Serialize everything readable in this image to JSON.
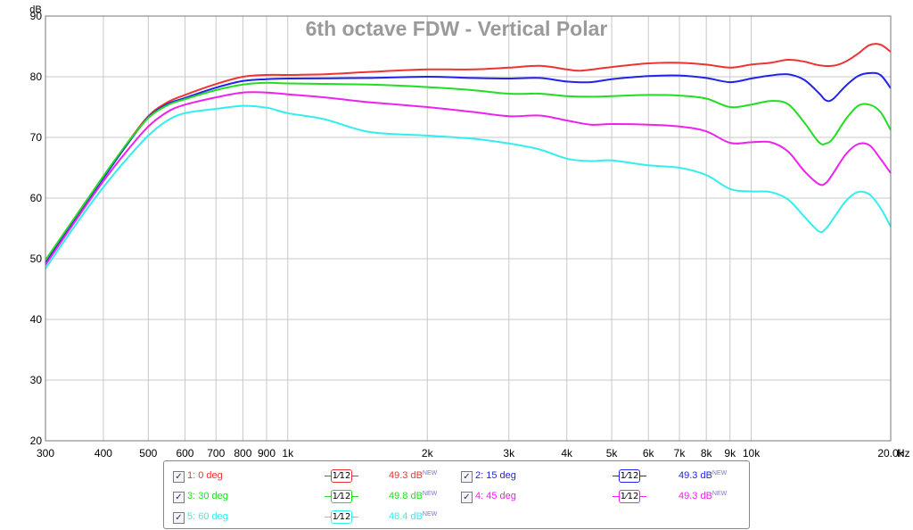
{
  "chart_data": {
    "type": "line",
    "title": "6th octave FDW - Vertical Polar",
    "ylabel": "dB",
    "xlabel": "Hz",
    "xscale": "log",
    "xlim": [
      300,
      20000
    ],
    "ylim": [
      20,
      90
    ],
    "y_ticks": [
      20,
      30,
      40,
      50,
      60,
      70,
      80,
      90
    ],
    "x_ticks": [
      {
        "v": 300,
        "label": "300"
      },
      {
        "v": 400,
        "label": "400"
      },
      {
        "v": 500,
        "label": "500"
      },
      {
        "v": 600,
        "label": "600"
      },
      {
        "v": 700,
        "label": "700"
      },
      {
        "v": 800,
        "label": "800"
      },
      {
        "v": 900,
        "label": "900"
      },
      {
        "v": 1000,
        "label": "1k"
      },
      {
        "v": 2000,
        "label": "2k"
      },
      {
        "v": 3000,
        "label": "3k"
      },
      {
        "v": 4000,
        "label": "4k"
      },
      {
        "v": 5000,
        "label": "5k"
      },
      {
        "v": 6000,
        "label": "6k"
      },
      {
        "v": 7000,
        "label": "7k"
      },
      {
        "v": 8000,
        "label": "8k"
      },
      {
        "v": 9000,
        "label": "9k"
      },
      {
        "v": 10000,
        "label": "10k"
      },
      {
        "v": 20000,
        "label": "20.0k"
      }
    ],
    "grid": true,
    "legend_position": "bottom",
    "series": [
      {
        "name": "1: 0 deg",
        "color": "#ee3333",
        "smoothing": "1/12",
        "value_label": "49.3 dB",
        "points": [
          [
            300,
            49.5
          ],
          [
            350,
            57
          ],
          [
            400,
            63.5
          ],
          [
            450,
            69
          ],
          [
            500,
            73.5
          ],
          [
            550,
            75.8
          ],
          [
            600,
            77
          ],
          [
            700,
            78.8
          ],
          [
            800,
            80
          ],
          [
            900,
            80.3
          ],
          [
            1000,
            80.3
          ],
          [
            1200,
            80.4
          ],
          [
            1500,
            80.8
          ],
          [
            2000,
            81.2
          ],
          [
            2500,
            81.2
          ],
          [
            3000,
            81.5
          ],
          [
            3500,
            81.8
          ],
          [
            4000,
            81.2
          ],
          [
            4300,
            81
          ],
          [
            5000,
            81.6
          ],
          [
            6000,
            82.2
          ],
          [
            7000,
            82.3
          ],
          [
            8000,
            82
          ],
          [
            9000,
            81.5
          ],
          [
            10000,
            82
          ],
          [
            11000,
            82.3
          ],
          [
            12000,
            82.8
          ],
          [
            13000,
            82.5
          ],
          [
            14000,
            81.9
          ],
          [
            15000,
            81.8
          ],
          [
            16000,
            82.5
          ],
          [
            17000,
            83.8
          ],
          [
            18000,
            85.2
          ],
          [
            19000,
            85.3
          ],
          [
            20000,
            84.1
          ]
        ]
      },
      {
        "name": "2: 15 deg",
        "color": "#2222ee",
        "smoothing": "1/12",
        "value_label": "49.3 dB",
        "points": [
          [
            300,
            49.2
          ],
          [
            350,
            57
          ],
          [
            400,
            63.3
          ],
          [
            450,
            68.8
          ],
          [
            500,
            73.3
          ],
          [
            550,
            75.5
          ],
          [
            600,
            76.5
          ],
          [
            700,
            78.2
          ],
          [
            800,
            79.3
          ],
          [
            900,
            79.6
          ],
          [
            1000,
            79.7
          ],
          [
            1500,
            79.8
          ],
          [
            2000,
            80
          ],
          [
            2500,
            79.8
          ],
          [
            3000,
            79.7
          ],
          [
            3500,
            79.8
          ],
          [
            4000,
            79.2
          ],
          [
            4500,
            79.1
          ],
          [
            5000,
            79.6
          ],
          [
            6000,
            80.1
          ],
          [
            7000,
            80.2
          ],
          [
            8000,
            79.8
          ],
          [
            9000,
            79.1
          ],
          [
            10000,
            79.7
          ],
          [
            11000,
            80.2
          ],
          [
            12000,
            80.4
          ],
          [
            13000,
            79.5
          ],
          [
            14000,
            77.3
          ],
          [
            14500,
            76.1
          ],
          [
            15000,
            76.3
          ],
          [
            16000,
            78.5
          ],
          [
            17000,
            80.1
          ],
          [
            18000,
            80.6
          ],
          [
            19000,
            80.3
          ],
          [
            20000,
            78.1
          ]
        ]
      },
      {
        "name": "3: 30  deg",
        "color": "#22dd22",
        "smoothing": "1/12",
        "value_label": "49.8 dB",
        "points": [
          [
            300,
            49.8
          ],
          [
            350,
            57.2
          ],
          [
            400,
            63.6
          ],
          [
            450,
            69
          ],
          [
            500,
            73.2
          ],
          [
            550,
            75.3
          ],
          [
            600,
            76.3
          ],
          [
            700,
            77.8
          ],
          [
            800,
            78.7
          ],
          [
            900,
            79
          ],
          [
            1000,
            78.9
          ],
          [
            1500,
            78.7
          ],
          [
            2000,
            78.3
          ],
          [
            2500,
            77.8
          ],
          [
            3000,
            77.2
          ],
          [
            3500,
            77.2
          ],
          [
            4000,
            76.8
          ],
          [
            4500,
            76.7
          ],
          [
            5000,
            76.8
          ],
          [
            6000,
            77
          ],
          [
            7000,
            76.9
          ],
          [
            8000,
            76.4
          ],
          [
            9000,
            75
          ],
          [
            10000,
            75.4
          ],
          [
            11000,
            76
          ],
          [
            12000,
            75.5
          ],
          [
            13000,
            72.5
          ],
          [
            14000,
            69.2
          ],
          [
            14500,
            69
          ],
          [
            15000,
            69.8
          ],
          [
            16000,
            73
          ],
          [
            17000,
            75.2
          ],
          [
            18000,
            75.4
          ],
          [
            19000,
            74.2
          ],
          [
            20000,
            71.2
          ]
        ]
      },
      {
        "name": "4: 45 deg",
        "color": "#ee22ee",
        "smoothing": "1/12",
        "value_label": "49.3 dB",
        "points": [
          [
            300,
            49
          ],
          [
            350,
            56.5
          ],
          [
            400,
            62.8
          ],
          [
            450,
            67.8
          ],
          [
            500,
            71.8
          ],
          [
            550,
            74.2
          ],
          [
            600,
            75.4
          ],
          [
            700,
            76.6
          ],
          [
            800,
            77.4
          ],
          [
            900,
            77.4
          ],
          [
            1000,
            77.1
          ],
          [
            1200,
            76.6
          ],
          [
            1500,
            75.8
          ],
          [
            2000,
            75
          ],
          [
            2500,
            74.2
          ],
          [
            3000,
            73.5
          ],
          [
            3500,
            73.6
          ],
          [
            4000,
            72.8
          ],
          [
            4500,
            72.1
          ],
          [
            5000,
            72.2
          ],
          [
            6000,
            72.1
          ],
          [
            7000,
            71.8
          ],
          [
            8000,
            71
          ],
          [
            9000,
            69.1
          ],
          [
            10000,
            69.2
          ],
          [
            11000,
            69.2
          ],
          [
            12000,
            67.7
          ],
          [
            13000,
            64.5
          ],
          [
            14000,
            62.3
          ],
          [
            14500,
            62.5
          ],
          [
            15000,
            64
          ],
          [
            16000,
            67.2
          ],
          [
            17000,
            68.9
          ],
          [
            18000,
            68.7
          ],
          [
            19000,
            66.5
          ],
          [
            20000,
            64.1
          ]
        ]
      },
      {
        "name": "5: 60 deg",
        "color": "#33eeee",
        "smoothing": "1/12",
        "value_label": "48.4 dB",
        "points": [
          [
            300,
            48.4
          ],
          [
            350,
            55.8
          ],
          [
            400,
            61.8
          ],
          [
            450,
            66.5
          ],
          [
            500,
            70.3
          ],
          [
            550,
            72.8
          ],
          [
            600,
            74
          ],
          [
            700,
            74.7
          ],
          [
            800,
            75.2
          ],
          [
            900,
            74.9
          ],
          [
            1000,
            74
          ],
          [
            1200,
            73
          ],
          [
            1500,
            70.9
          ],
          [
            2000,
            70.3
          ],
          [
            2500,
            69.8
          ],
          [
            3000,
            69
          ],
          [
            3500,
            68
          ],
          [
            4000,
            66.5
          ],
          [
            4500,
            66.1
          ],
          [
            5000,
            66.2
          ],
          [
            6000,
            65.4
          ],
          [
            7000,
            65
          ],
          [
            8000,
            63.8
          ],
          [
            9000,
            61.5
          ],
          [
            10000,
            61.1
          ],
          [
            11000,
            61
          ],
          [
            12000,
            59.8
          ],
          [
            13000,
            57
          ],
          [
            14000,
            54.5
          ],
          [
            14500,
            55
          ],
          [
            15000,
            56.5
          ],
          [
            16000,
            59.5
          ],
          [
            17000,
            61
          ],
          [
            18000,
            60.6
          ],
          [
            19000,
            58.4
          ],
          [
            20000,
            55.3
          ]
        ]
      }
    ]
  },
  "legend": {
    "new_tag": "NEW",
    "smooth_label_num": "1",
    "smooth_label_den": "12"
  }
}
